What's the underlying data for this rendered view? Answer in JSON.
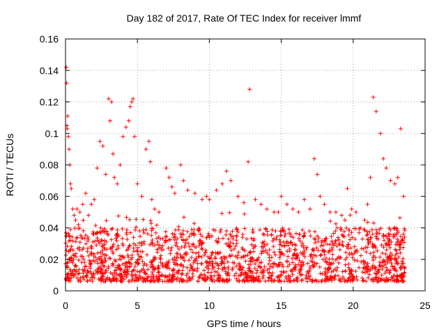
{
  "chart_data": {
    "type": "scatter",
    "title": "Day 182 of 2017, Rate Of TEC Index for receiver lmmf",
    "xlabel": "GPS time / hours",
    "ylabel": "ROTI / TECUs",
    "xlim": [
      0,
      25
    ],
    "ylim": [
      0,
      0.16
    ],
    "xticks": [
      0,
      5,
      10,
      15,
      20,
      25
    ],
    "xtick_labels": [
      "0",
      "5",
      "10",
      "15",
      "20",
      "25"
    ],
    "yticks": [
      0,
      0.02,
      0.04,
      0.06,
      0.08,
      0.1,
      0.12,
      0.14,
      0.16
    ],
    "ytick_labels": [
      "0",
      "0.02",
      "0.04",
      "0.06",
      "0.08",
      "0.1",
      "0.12",
      "0.14",
      "0.16"
    ],
    "grid": true,
    "marker": "plus",
    "marker_color": "#ff0000",
    "series": [
      {
        "name": "ROTI",
        "x": [
          0.05,
          0.08,
          0.1,
          0.12,
          0.15,
          0.2,
          0.25,
          0.3,
          0.35,
          0.4,
          0.5,
          0.6,
          0.7,
          0.8,
          0.9,
          1.0,
          1.2,
          1.4,
          1.6,
          1.8,
          2.0,
          2.2,
          2.4,
          2.6,
          2.8,
          3.0,
          3.1,
          3.2,
          3.3,
          3.4,
          3.6,
          3.8,
          4.0,
          4.2,
          4.4,
          4.5,
          4.6,
          4.7,
          4.8,
          5.0,
          5.3,
          5.6,
          5.8,
          5.9,
          6.0,
          6.2,
          6.5,
          7.0,
          7.2,
          7.4,
          7.6,
          8.0,
          8.2,
          8.5,
          9.0,
          9.5,
          9.8,
          10.0,
          10.5,
          10.9,
          11.2,
          11.5,
          12.0,
          12.4,
          12.7,
          12.8,
          13.2,
          13.6,
          14.0,
          14.5,
          14.8,
          15.0,
          15.4,
          15.8,
          16.2,
          16.6,
          17.0,
          17.3,
          17.5,
          17.7,
          18.0,
          18.4,
          18.8,
          19.2,
          19.6,
          19.9,
          20.2,
          20.5,
          20.8,
          21.0,
          21.2,
          21.4,
          21.6,
          21.9,
          22.1,
          22.3,
          22.6,
          22.9,
          23.1,
          23.3,
          23.5
        ],
        "y": [
          0.142,
          0.132,
          0.105,
          0.103,
          0.111,
          0.098,
          0.09,
          0.08,
          0.068,
          0.065,
          0.052,
          0.048,
          0.045,
          0.052,
          0.042,
          0.05,
          0.055,
          0.062,
          0.048,
          0.055,
          0.058,
          0.078,
          0.095,
          0.092,
          0.074,
          0.122,
          0.108,
          0.12,
          0.087,
          0.072,
          0.068,
          0.08,
          0.098,
          0.104,
          0.108,
          0.117,
          0.12,
          0.122,
          0.098,
          0.068,
          0.06,
          0.09,
          0.095,
          0.082,
          0.058,
          0.052,
          0.05,
          0.078,
          0.072,
          0.066,
          0.062,
          0.08,
          0.07,
          0.064,
          0.062,
          0.058,
          0.06,
          0.058,
          0.064,
          0.068,
          0.076,
          0.07,
          0.06,
          0.056,
          0.082,
          0.128,
          0.058,
          0.055,
          0.052,
          0.05,
          0.05,
          0.06,
          0.055,
          0.052,
          0.05,
          0.058,
          0.052,
          0.084,
          0.074,
          0.06,
          0.055,
          0.05,
          0.05,
          0.048,
          0.065,
          0.052,
          0.05,
          0.04,
          0.045,
          0.055,
          0.072,
          0.123,
          0.114,
          0.1,
          0.084,
          0.078,
          0.07,
          0.068,
          0.072,
          0.103,
          0.06
        ]
      }
    ]
  }
}
